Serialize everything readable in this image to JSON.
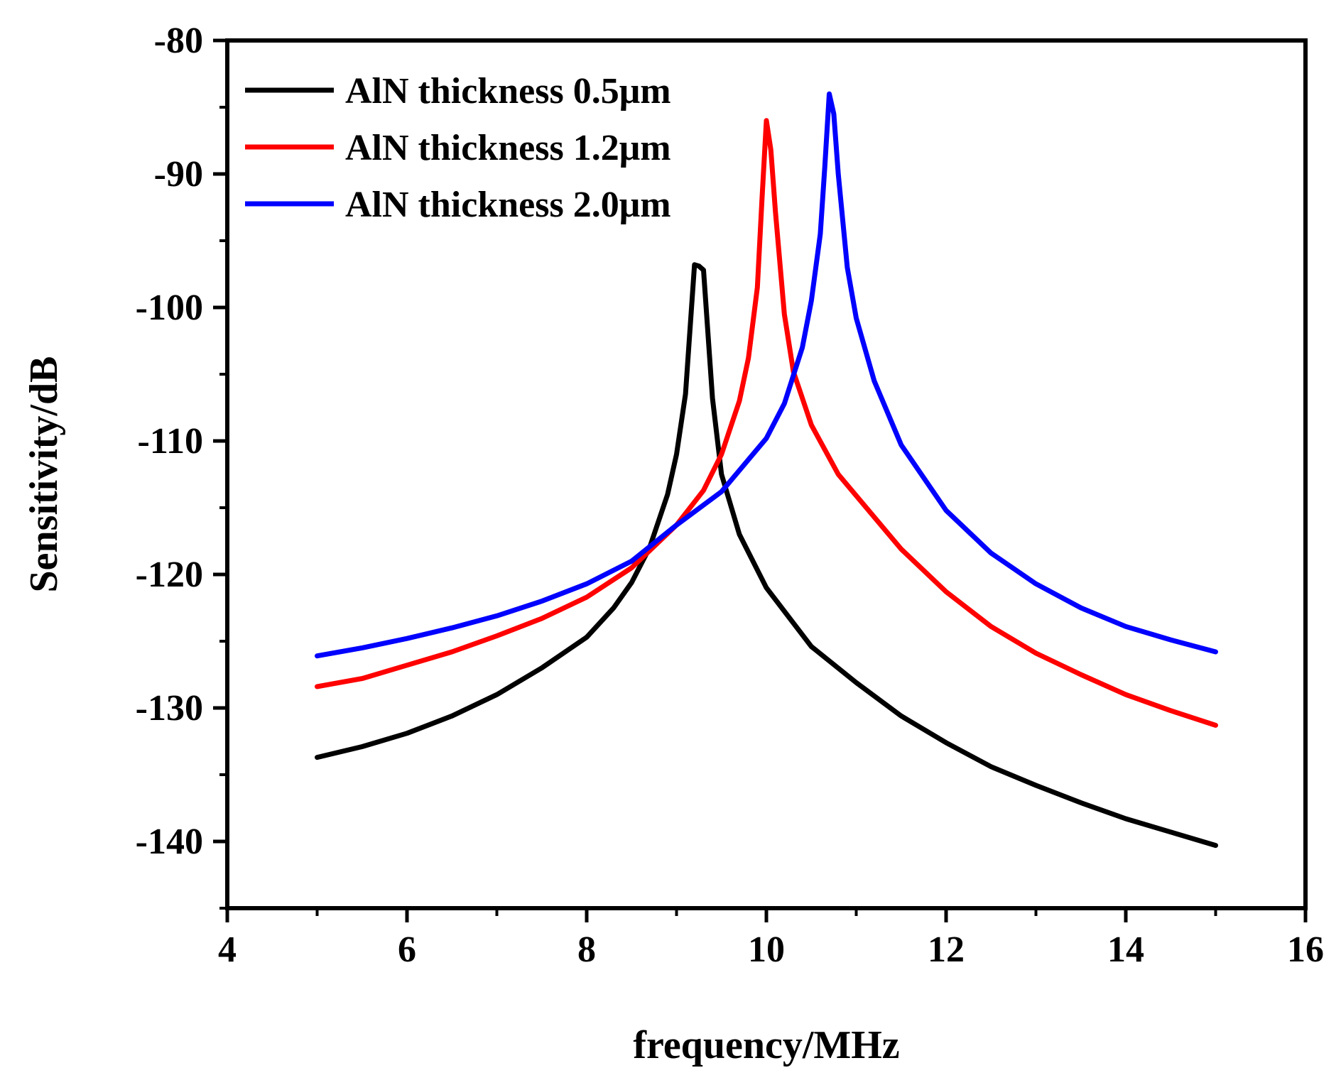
{
  "chart_data": {
    "type": "line",
    "title": "",
    "xlabel": "frequency/MHz",
    "ylabel": "Sensitivity/dB",
    "xlim": [
      4,
      16
    ],
    "ylim": [
      -145,
      -80
    ],
    "xticks": [
      4,
      6,
      8,
      10,
      12,
      14,
      16
    ],
    "yticks": [
      -80,
      -90,
      -100,
      -110,
      -120,
      -130,
      -140
    ],
    "grid": false,
    "legend_position": "top-left",
    "series": [
      {
        "name": "AlN thickness 0.5μm",
        "color": "#000000",
        "x": [
          5.0,
          5.5,
          6.0,
          6.5,
          7.0,
          7.5,
          8.0,
          8.3,
          8.5,
          8.7,
          8.9,
          9.0,
          9.1,
          9.2,
          9.25,
          9.3,
          9.4,
          9.5,
          9.7,
          10.0,
          10.5,
          11.0,
          11.5,
          12.0,
          12.5,
          13.0,
          13.5,
          14.0,
          14.5,
          15.0
        ],
        "y": [
          -133.7,
          -132.9,
          -131.9,
          -130.6,
          -129.0,
          -127.0,
          -124.7,
          -122.5,
          -120.6,
          -118.0,
          -114.0,
          -111.0,
          -106.5,
          -96.8,
          -96.9,
          -97.2,
          -106.8,
          -112.5,
          -117.0,
          -121.0,
          -125.4,
          -128.1,
          -130.6,
          -132.6,
          -134.4,
          -135.8,
          -137.1,
          -138.3,
          -139.3,
          -140.3
        ]
      },
      {
        "name": "AlN thickness 1.2μm",
        "color": "#ff0000",
        "x": [
          5.0,
          5.5,
          6.0,
          6.5,
          7.0,
          7.5,
          8.0,
          8.5,
          9.0,
          9.3,
          9.5,
          9.7,
          9.8,
          9.9,
          9.95,
          10.0,
          10.05,
          10.1,
          10.2,
          10.3,
          10.5,
          10.8,
          11.0,
          11.5,
          12.0,
          12.5,
          13.0,
          13.5,
          14.0,
          14.5,
          15.0
        ],
        "y": [
          -128.4,
          -127.8,
          -126.8,
          -125.8,
          -124.6,
          -123.3,
          -121.7,
          -119.5,
          -116.3,
          -113.7,
          -111.0,
          -107.0,
          -103.8,
          -98.5,
          -92.0,
          -86.0,
          -88.2,
          -92.8,
          -100.5,
          -104.8,
          -108.8,
          -112.5,
          -114.1,
          -118.1,
          -121.3,
          -123.9,
          -125.9,
          -127.5,
          -129.0,
          -130.2,
          -131.3
        ]
      },
      {
        "name": "AlN thickness 2.0μm",
        "color": "#0000ff",
        "x": [
          5.0,
          5.5,
          6.0,
          6.5,
          7.0,
          7.5,
          8.0,
          8.5,
          9.0,
          9.5,
          10.0,
          10.2,
          10.4,
          10.5,
          10.6,
          10.65,
          10.7,
          10.75,
          10.8,
          10.9,
          11.0,
          11.2,
          11.5,
          12.0,
          12.5,
          13.0,
          13.5,
          14.0,
          14.5,
          15.0
        ],
        "y": [
          -126.1,
          -125.5,
          -124.8,
          -124.0,
          -123.1,
          -122.0,
          -120.7,
          -119.0,
          -116.3,
          -113.8,
          -109.8,
          -107.2,
          -103.0,
          -99.5,
          -94.5,
          -89.5,
          -84.0,
          -85.5,
          -90.0,
          -97.0,
          -100.8,
          -105.5,
          -110.3,
          -115.2,
          -118.4,
          -120.7,
          -122.5,
          -123.9,
          -124.9,
          -125.8
        ]
      }
    ]
  }
}
